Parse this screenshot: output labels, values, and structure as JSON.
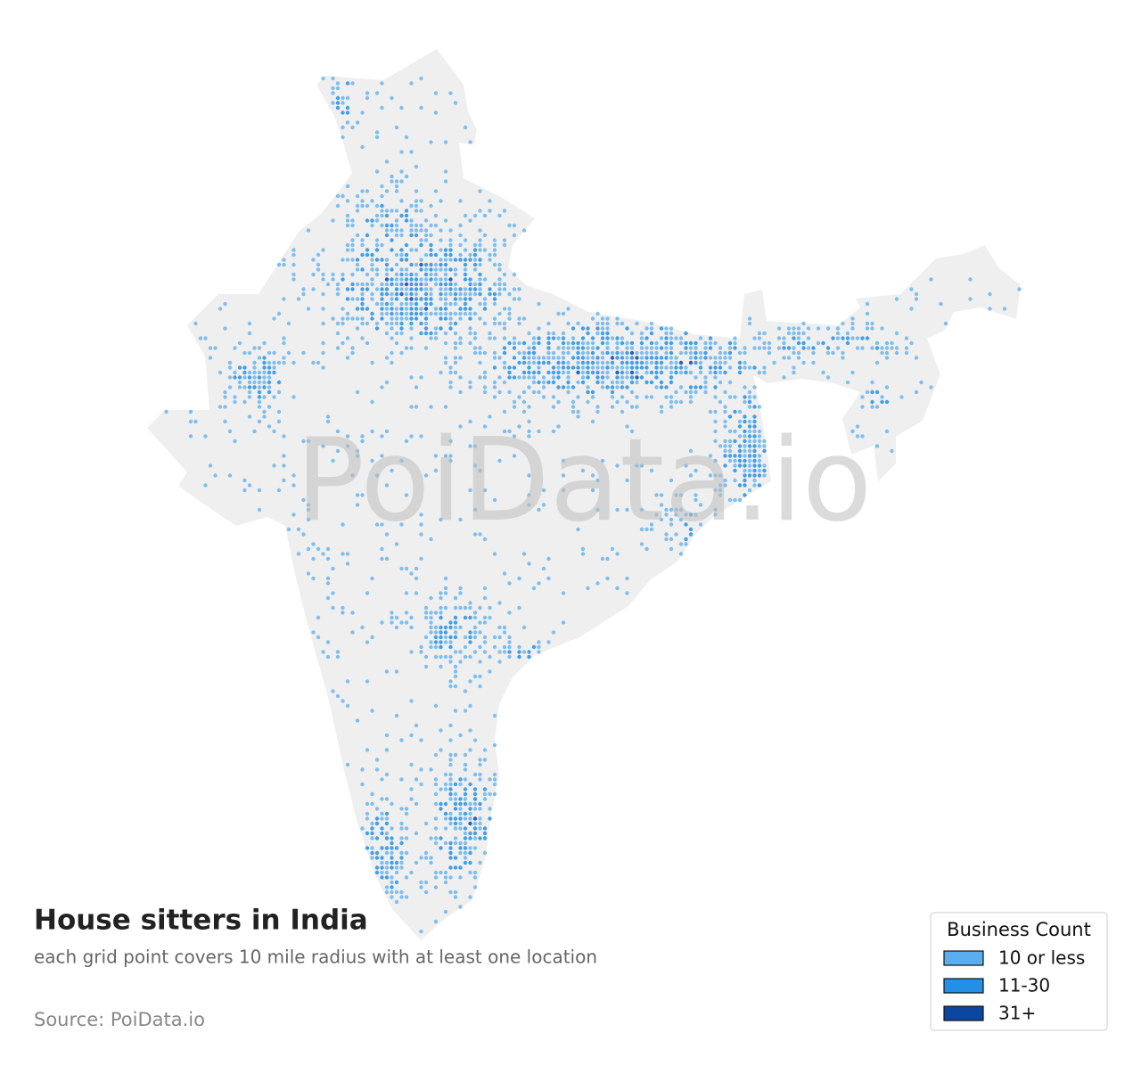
{
  "map": {
    "title": "House sitters in India",
    "subtitle": "each grid point covers 10 mile radius with at least one location",
    "source": "Source: PoiData.io",
    "watermark": "PoiData.io",
    "legend": {
      "title": "Business Count",
      "items": [
        {
          "label": "10 or less",
          "color": "#5aaef0"
        },
        {
          "label": "11-30",
          "color": "#2390e8"
        },
        {
          "label": "31+",
          "color": "#0b47a1"
        }
      ]
    }
  }
}
